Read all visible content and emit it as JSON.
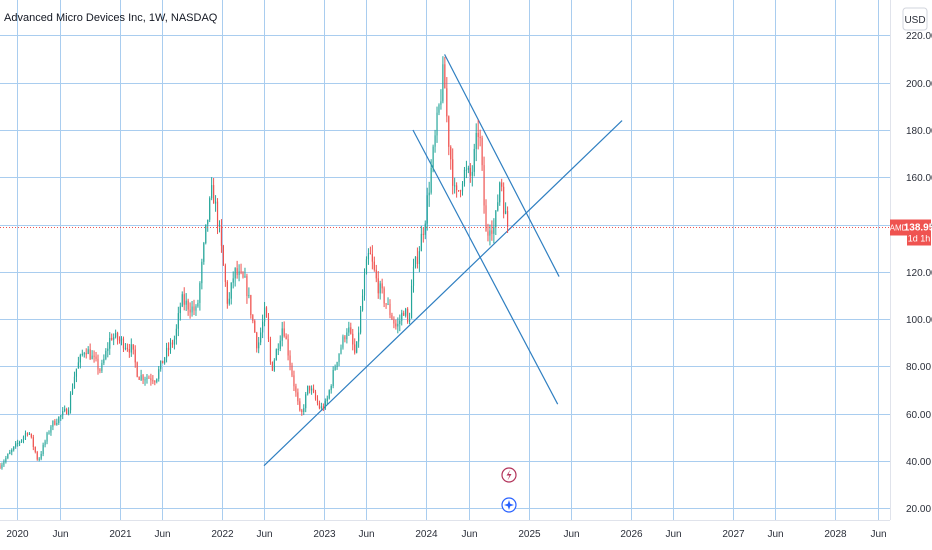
{
  "header": {
    "title": "Advanced Micro Devices Inc, 1W, NASDAQ"
  },
  "currency_button": {
    "label": "USD"
  },
  "price_tag": {
    "symbol": "AMD",
    "value": "138.95",
    "countdown": "1d 1h"
  },
  "colors": {
    "up": "#26a69a",
    "down": "#ef5350",
    "trendline": "#2f7fc1",
    "grid": "#a9cdef",
    "price_line": "#ef5350"
  },
  "chart_data": {
    "type": "candlestick",
    "title": "Advanced Micro Devices Inc, 1W, NASDAQ",
    "currency": "USD",
    "ylim": [
      15,
      235
    ],
    "xlim": [
      "2019-11-01",
      "2028-07-15"
    ],
    "y_ticks": [
      "20.00",
      "40.00",
      "60.00",
      "80.00",
      "100.00",
      "120.00",
      "140.00",
      "160.00",
      "180.00",
      "200.00",
      "220.00"
    ],
    "x_ticks": [
      {
        "date": "2020-01-01",
        "label": "2020"
      },
      {
        "date": "2020-06-01",
        "label": "Jun"
      },
      {
        "date": "2021-01-01",
        "label": "2021"
      },
      {
        "date": "2021-06-01",
        "label": "Jun"
      },
      {
        "date": "2022-01-01",
        "label": "2022"
      },
      {
        "date": "2022-06-01",
        "label": "Jun"
      },
      {
        "date": "2023-01-01",
        "label": "2023"
      },
      {
        "date": "2023-06-01",
        "label": "Jun"
      },
      {
        "date": "2024-01-01",
        "label": "2024"
      },
      {
        "date": "2024-06-01",
        "label": "Jun"
      },
      {
        "date": "2025-01-01",
        "label": "2025"
      },
      {
        "date": "2025-06-01",
        "label": "Jun"
      },
      {
        "date": "2026-01-01",
        "label": "2026"
      },
      {
        "date": "2026-06-01",
        "label": "Jun"
      },
      {
        "date": "2027-01-01",
        "label": "2027"
      },
      {
        "date": "2027-06-01",
        "label": "Jun"
      },
      {
        "date": "2028-01-01",
        "label": "2028"
      },
      {
        "date": "2028-06-01",
        "label": "Jun"
      }
    ],
    "price_path": [
      [
        "2019-11-01",
        38
      ],
      [
        "2020-02-10",
        53
      ],
      [
        "2020-03-16",
        40
      ],
      [
        "2020-05-01",
        55
      ],
      [
        "2020-07-01",
        62
      ],
      [
        "2020-07-27",
        78
      ],
      [
        "2020-09-01",
        88
      ],
      [
        "2020-10-26",
        78
      ],
      [
        "2020-12-01",
        93
      ],
      [
        "2021-01-15",
        90
      ],
      [
        "2021-02-15",
        87
      ],
      [
        "2021-03-08",
        76
      ],
      [
        "2021-05-10",
        75
      ],
      [
        "2021-06-14",
        85
      ],
      [
        "2021-07-19",
        92
      ],
      [
        "2021-08-09",
        108
      ],
      [
        "2021-10-04",
        103
      ],
      [
        "2021-11-08",
        140
      ],
      [
        "2021-11-29",
        155
      ],
      [
        "2021-12-20",
        140
      ],
      [
        "2022-01-24",
        105
      ],
      [
        "2022-02-14",
        120
      ],
      [
        "2022-03-28",
        115
      ],
      [
        "2022-05-09",
        88
      ],
      [
        "2022-06-06",
        104
      ],
      [
        "2022-06-27",
        78
      ],
      [
        "2022-08-08",
        98
      ],
      [
        "2022-09-12",
        75
      ],
      [
        "2022-10-10",
        58
      ],
      [
        "2022-11-07",
        72
      ],
      [
        "2022-12-19",
        62
      ],
      [
        "2023-01-09",
        64
      ],
      [
        "2023-02-13",
        82
      ],
      [
        "2023-03-27",
        97
      ],
      [
        "2023-04-24",
        84
      ],
      [
        "2023-05-29",
        120
      ],
      [
        "2023-06-12",
        128
      ],
      [
        "2023-07-10",
        115
      ],
      [
        "2023-08-21",
        104
      ],
      [
        "2023-09-18",
        96
      ],
      [
        "2023-10-16",
        105
      ],
      [
        "2023-10-30",
        96
      ],
      [
        "2023-11-13",
        118
      ],
      [
        "2023-12-04",
        128
      ],
      [
        "2023-12-26",
        141
      ],
      [
        "2024-01-29",
        172
      ],
      [
        "2024-03-04",
        205
      ],
      [
        "2024-03-18",
        180
      ],
      [
        "2024-04-15",
        150
      ],
      [
        "2024-05-13",
        162
      ],
      [
        "2024-06-10",
        160
      ],
      [
        "2024-07-08",
        182
      ],
      [
        "2024-08-05",
        130
      ],
      [
        "2024-08-12",
        142
      ],
      [
        "2024-09-02",
        138
      ],
      [
        "2024-09-23",
        162
      ],
      [
        "2024-10-07",
        145
      ],
      [
        "2024-10-21",
        139
      ]
    ],
    "trendlines": [
      {
        "points": [
          [
            "2022-06-01",
            38
          ],
          [
            "2025-12-01",
            184
          ]
        ]
      },
      {
        "points": [
          [
            "2024-03-07",
            212
          ],
          [
            "2025-04-20",
            118
          ]
        ]
      },
      {
        "points": [
          [
            "2023-11-15",
            180
          ],
          [
            "2025-04-15",
            64
          ]
        ]
      }
    ],
    "current_price": 138.95,
    "symbol": "AMD"
  }
}
